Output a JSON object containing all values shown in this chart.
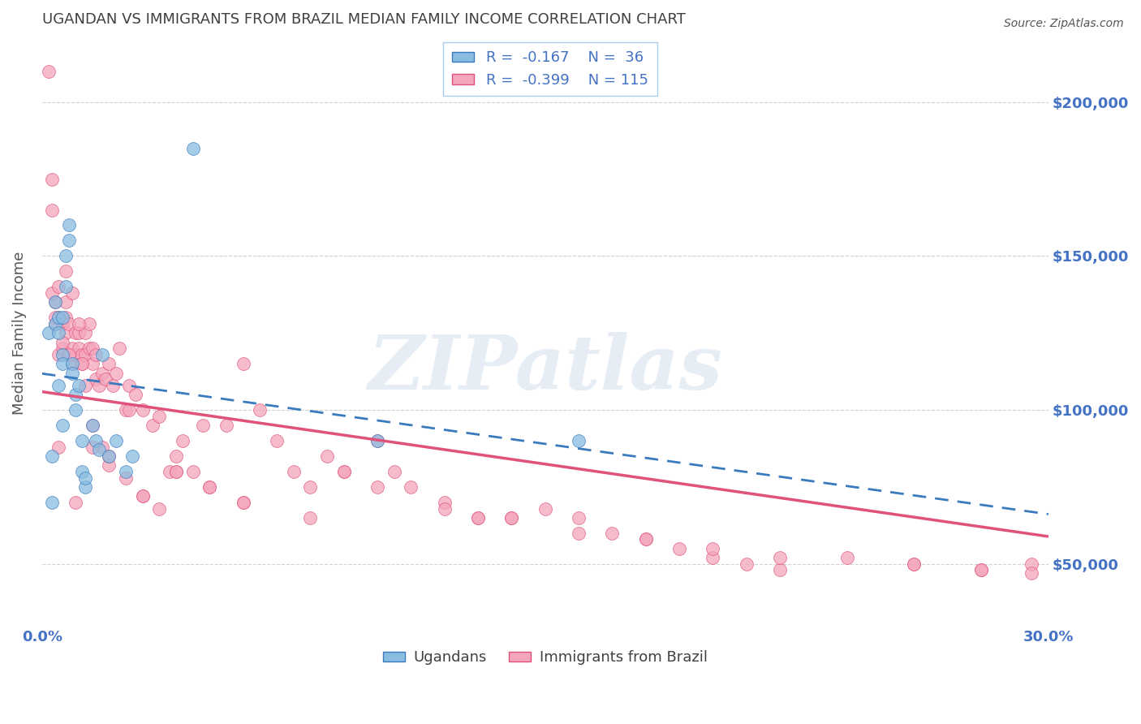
{
  "title": "UGANDAN VS IMMIGRANTS FROM BRAZIL MEDIAN FAMILY INCOME CORRELATION CHART",
  "source": "Source: ZipAtlas.com",
  "ylabel": "Median Family Income",
  "watermark": "ZIPatlas",
  "xmin": 0.0,
  "xmax": 0.3,
  "ymin": 30000,
  "ymax": 220000,
  "yticks": [
    50000,
    100000,
    150000,
    200000
  ],
  "ytick_labels": [
    "$50,000",
    "$100,000",
    "$150,000",
    "$200,000"
  ],
  "color_blue": "#89bde0",
  "color_pink": "#f4a6bc",
  "color_blue_line": "#3a7abf",
  "color_pink_line": "#e0527a",
  "color_axis": "#4472c4",
  "title_color": "#404040",
  "background_color": "#ffffff",
  "R_ug": -0.167,
  "N_ug": 36,
  "R_br": -0.399,
  "N_br": 115,
  "ugandan_x": [
    0.002,
    0.003,
    0.003,
    0.004,
    0.004,
    0.005,
    0.005,
    0.005,
    0.006,
    0.006,
    0.006,
    0.006,
    0.007,
    0.007,
    0.008,
    0.008,
    0.009,
    0.009,
    0.01,
    0.01,
    0.011,
    0.012,
    0.012,
    0.013,
    0.013,
    0.015,
    0.016,
    0.017,
    0.018,
    0.02,
    0.022,
    0.025,
    0.027,
    0.045,
    0.1,
    0.16
  ],
  "ugandan_y": [
    125000,
    85000,
    70000,
    135000,
    128000,
    130000,
    125000,
    108000,
    130000,
    118000,
    115000,
    95000,
    140000,
    150000,
    160000,
    155000,
    115000,
    112000,
    105000,
    100000,
    108000,
    90000,
    80000,
    75000,
    78000,
    95000,
    90000,
    87000,
    118000,
    85000,
    90000,
    80000,
    85000,
    185000,
    90000,
    90000
  ],
  "brazil_x": [
    0.002,
    0.003,
    0.003,
    0.004,
    0.004,
    0.005,
    0.005,
    0.006,
    0.006,
    0.007,
    0.007,
    0.007,
    0.008,
    0.008,
    0.009,
    0.009,
    0.01,
    0.01,
    0.011,
    0.011,
    0.012,
    0.012,
    0.013,
    0.013,
    0.014,
    0.014,
    0.015,
    0.015,
    0.016,
    0.016,
    0.017,
    0.018,
    0.019,
    0.02,
    0.021,
    0.022,
    0.023,
    0.025,
    0.026,
    0.028,
    0.03,
    0.033,
    0.035,
    0.038,
    0.04,
    0.042,
    0.045,
    0.048,
    0.05,
    0.055,
    0.06,
    0.065,
    0.07,
    0.075,
    0.08,
    0.085,
    0.09,
    0.1,
    0.105,
    0.11,
    0.12,
    0.13,
    0.14,
    0.15,
    0.16,
    0.17,
    0.18,
    0.19,
    0.2,
    0.21,
    0.22,
    0.24,
    0.26,
    0.28,
    0.295,
    0.003,
    0.005,
    0.007,
    0.009,
    0.011,
    0.013,
    0.015,
    0.018,
    0.02,
    0.025,
    0.03,
    0.035,
    0.04,
    0.05,
    0.06,
    0.08,
    0.1,
    0.12,
    0.14,
    0.16,
    0.18,
    0.2,
    0.22,
    0.26,
    0.28,
    0.295,
    0.005,
    0.01,
    0.015,
    0.02,
    0.03,
    0.04,
    0.06,
    0.004,
    0.006,
    0.008,
    0.012,
    0.026,
    0.09,
    0.13
  ],
  "brazil_y": [
    210000,
    175000,
    165000,
    128000,
    135000,
    130000,
    118000,
    128000,
    120000,
    125000,
    135000,
    130000,
    128000,
    118000,
    120000,
    115000,
    118000,
    125000,
    125000,
    120000,
    118000,
    115000,
    118000,
    125000,
    120000,
    128000,
    115000,
    120000,
    110000,
    118000,
    108000,
    112000,
    110000,
    115000,
    108000,
    112000,
    120000,
    100000,
    108000,
    105000,
    100000,
    95000,
    98000,
    80000,
    85000,
    90000,
    80000,
    95000,
    75000,
    95000,
    115000,
    100000,
    90000,
    80000,
    75000,
    85000,
    80000,
    90000,
    80000,
    75000,
    70000,
    65000,
    65000,
    68000,
    65000,
    60000,
    58000,
    55000,
    52000,
    50000,
    48000,
    52000,
    50000,
    48000,
    50000,
    138000,
    140000,
    145000,
    138000,
    128000,
    108000,
    95000,
    88000,
    82000,
    78000,
    72000,
    68000,
    80000,
    75000,
    70000,
    65000,
    75000,
    68000,
    65000,
    60000,
    58000,
    55000,
    52000,
    50000,
    48000,
    47000,
    88000,
    70000,
    88000,
    85000,
    72000,
    80000,
    70000,
    130000,
    122000,
    118000,
    115000,
    100000,
    80000,
    65000
  ]
}
